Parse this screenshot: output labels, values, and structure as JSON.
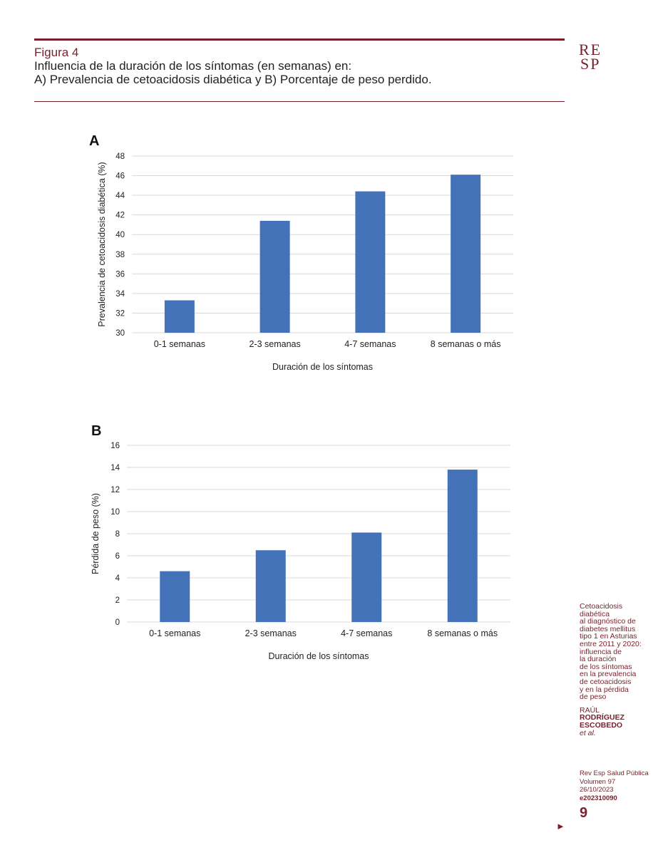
{
  "header": {
    "figure_label": "Figura 4",
    "title_lines": [
      "Influencia de la duración de los síntomas (en semanas) en:",
      "A) Prevalencia de cetoacidosis diabética y B) Porcentaje de peso perdido."
    ],
    "logo_top": "RE",
    "logo_bottom": "SP"
  },
  "chart_data": [
    {
      "panel": "A",
      "type": "bar",
      "categories": [
        "0-1 semanas",
        "2-3 semanas",
        "4-7 semanas",
        "8 semanas o más"
      ],
      "values": [
        33.3,
        41.4,
        44.4,
        46.1
      ],
      "xlabel": "Duración de los síntomas",
      "ylabel": "Prevalencia de cetoacidosis diabética (%)",
      "ylim": [
        30,
        48
      ],
      "yticks": [
        30,
        32,
        34,
        36,
        38,
        40,
        42,
        44,
        46,
        48
      ],
      "grid": true,
      "bar_color": "#4472b8"
    },
    {
      "panel": "B",
      "type": "bar",
      "categories": [
        "0-1 semanas",
        "2-3 semanas",
        "4-7 semanas",
        "8 semanas o más"
      ],
      "values": [
        4.6,
        6.5,
        8.1,
        13.8
      ],
      "xlabel": "Duración de los síntomas",
      "ylabel": "Pérdida de peso (%)",
      "ylim": [
        0,
        16
      ],
      "yticks": [
        0,
        2,
        4,
        6,
        8,
        10,
        12,
        14,
        16
      ],
      "grid": true,
      "bar_color": "#4472b8"
    }
  ],
  "sidebar": {
    "title_lines": [
      "Cetoacidosis",
      "diabética",
      "al diagnóstico de",
      "diabetes mellitus",
      "tipo 1 en Asturias",
      "entre 2011 y 2020:",
      "influencia de",
      "la duración",
      "de los síntomas",
      "en la prevalencia",
      "de cetoacidosis",
      "y en la pérdida",
      "de peso"
    ],
    "author_first": "RAÚL",
    "author_last1": "RODRÍGUEZ",
    "author_last2": "ESCOBEDO",
    "author_etal": "et al."
  },
  "journal": {
    "name": "Rev Esp Salud Pública",
    "volume": "Volumen 97",
    "date": "26/10/2023",
    "code": "e202310090",
    "page": "9",
    "arrow": "►"
  }
}
